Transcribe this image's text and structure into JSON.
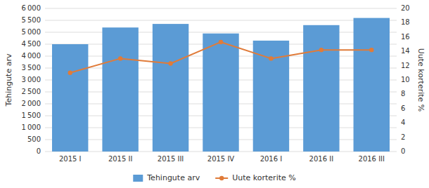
{
  "chart_data": {
    "type": "bar",
    "categories": [
      "2015 I",
      "2015 II",
      "2015 III",
      "2015 IV",
      "2016 I",
      "2016 II",
      "2016 III"
    ],
    "series": [
      {
        "name": "Tehingute arv",
        "type": "bar",
        "color": "#5B9BD5",
        "values": [
          4500,
          5200,
          5350,
          4950,
          4650,
          5300,
          5600
        ]
      },
      {
        "name": "Uute korterite %",
        "type": "line",
        "axis": "y2",
        "color": "#E07B39",
        "marker": "circle",
        "values": [
          11.0,
          13.0,
          12.3,
          15.3,
          13.0,
          14.2,
          14.2
        ]
      }
    ],
    "ylabel": "Tehingute arv",
    "y2label": "Uute korterite %",
    "ylim": [
      0,
      6000
    ],
    "yticks": [
      0,
      500,
      {
        "value": 1000,
        "label": "1 000"
      },
      {
        "value": 1500,
        "label": "1 500"
      },
      {
        "value": 2000,
        "label": "2 000"
      },
      {
        "value": 2500,
        "label": "2 500"
      },
      {
        "value": 3000,
        "label": "3 000"
      },
      {
        "value": 3500,
        "label": "3 500"
      },
      {
        "value": 4000,
        "label": "4 000"
      },
      {
        "value": 4500,
        "label": "4 500"
      },
      {
        "value": 5000,
        "label": "5 000"
      },
      {
        "value": 5500,
        "label": "5 500"
      },
      {
        "value": 6000,
        "label": "6 000"
      }
    ],
    "y2lim": [
      0,
      20
    ],
    "y2ticks": [
      0,
      2,
      4,
      6,
      8,
      10,
      12,
      14,
      16,
      18,
      20
    ],
    "grid": true,
    "legend": "bottom"
  }
}
